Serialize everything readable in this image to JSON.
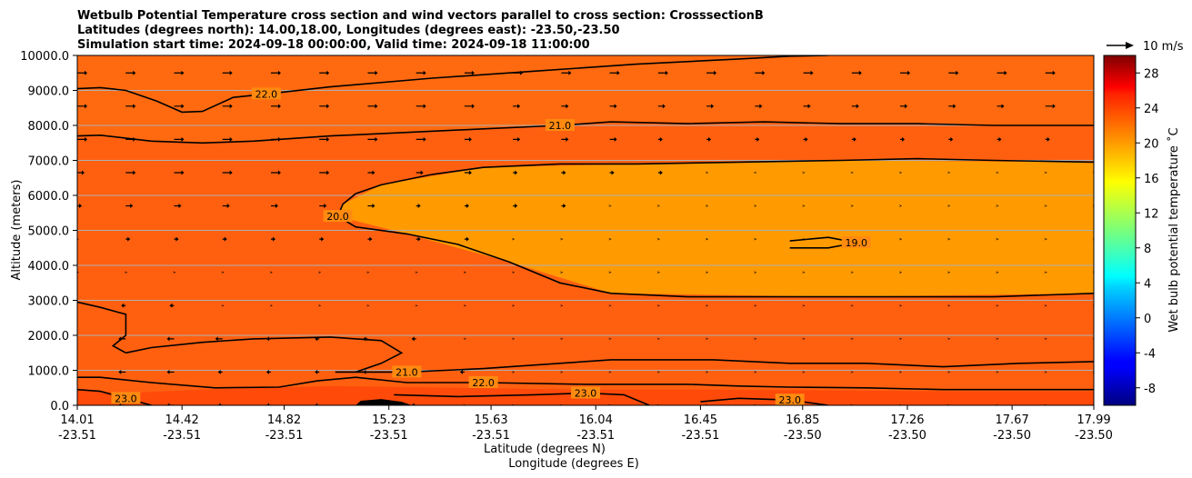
{
  "chart_data": {
    "type": "contourf",
    "title_lines": [
      "Wetbulb Potential Temperature cross section and wind vectors parallel to cross section: CrosssectionB",
      "Latitudes (degrees north): 14.00,18.00, Longitudes (degrees east): -23.50,-23.50",
      "Simulation start time: 2024-09-18 00:00:00, Valid time: 2024-09-18 11:00:00"
    ],
    "ylabel": "Altitude (meters)",
    "xlabel_line1": "Latitude (degrees N)",
    "xlabel_line2": "Longitude (degrees E)",
    "xlim": [
      14.01,
      17.99
    ],
    "ylim": [
      0,
      10000
    ],
    "x_ticks": [
      {
        "lat": "14.01",
        "lon": "-23.51",
        "value": 14.01
      },
      {
        "lat": "14.42",
        "lon": "-23.51",
        "value": 14.42
      },
      {
        "lat": "14.82",
        "lon": "-23.51",
        "value": 14.82
      },
      {
        "lat": "15.23",
        "lon": "-23.51",
        "value": 15.23
      },
      {
        "lat": "15.63",
        "lon": "-23.51",
        "value": 15.63
      },
      {
        "lat": "16.04",
        "lon": "-23.51",
        "value": 16.04
      },
      {
        "lat": "16.45",
        "lon": "-23.51",
        "value": 16.45
      },
      {
        "lat": "16.85",
        "lon": "-23.50",
        "value": 16.85
      },
      {
        "lat": "17.26",
        "lon": "-23.50",
        "value": 17.26
      },
      {
        "lat": "17.67",
        "lon": "-23.50",
        "value": 17.67
      },
      {
        "lat": "17.99",
        "lon": "-23.50",
        "value": 17.99
      }
    ],
    "y_ticks": [
      {
        "label": "0.0",
        "value": 0
      },
      {
        "label": "1000.0",
        "value": 1000
      },
      {
        "label": "2000.0",
        "value": 2000
      },
      {
        "label": "3000.0",
        "value": 3000
      },
      {
        "label": "4000.0",
        "value": 4000
      },
      {
        "label": "5000.0",
        "value": 5000
      },
      {
        "label": "6000.0",
        "value": 6000
      },
      {
        "label": "7000.0",
        "value": 7000
      },
      {
        "label": "8000.0",
        "value": 8000
      },
      {
        "label": "9000.0",
        "value": 9000
      },
      {
        "label": "10000.0",
        "value": 10000
      }
    ],
    "grid": "horizontal",
    "colorbar": {
      "label": "Wet bulb potential temperature ˚C",
      "colormap": "jet",
      "vmin": -10,
      "vmax": 30,
      "ticks": [
        "-8",
        "-4",
        "0",
        "4",
        "8",
        "12",
        "16",
        "20",
        "24",
        "28"
      ],
      "tick_values": [
        -8,
        -4,
        0,
        4,
        8,
        12,
        16,
        20,
        24,
        28
      ]
    },
    "quiver_key": {
      "label": "10 m/s",
      "value": 10
    },
    "contours": [
      {
        "level": 22.0,
        "label": "22.0",
        "points": [
          [
            14.01,
            9050
          ],
          [
            14.1,
            9080
          ],
          [
            14.2,
            9000
          ],
          [
            14.32,
            8700
          ],
          [
            14.42,
            8380
          ],
          [
            14.5,
            8400
          ],
          [
            14.62,
            8800
          ],
          [
            14.75,
            8900
          ],
          [
            15.0,
            9100
          ],
          [
            15.4,
            9350
          ],
          [
            15.8,
            9550
          ],
          [
            16.2,
            9750
          ],
          [
            16.6,
            9900
          ],
          [
            16.8,
            9980
          ],
          [
            16.95,
            10000
          ]
        ]
      },
      {
        "level": 21.0,
        "label": "21.0",
        "points": [
          [
            14.01,
            7700
          ],
          [
            14.1,
            7720
          ],
          [
            14.3,
            7550
          ],
          [
            14.5,
            7500
          ],
          [
            14.7,
            7550
          ],
          [
            15.0,
            7700
          ],
          [
            15.3,
            7800
          ],
          [
            15.6,
            7900
          ],
          [
            15.9,
            8000
          ],
          [
            16.1,
            8100
          ],
          [
            16.4,
            8050
          ],
          [
            16.7,
            8100
          ],
          [
            17.0,
            8050
          ],
          [
            17.3,
            8050
          ],
          [
            17.6,
            8000
          ],
          [
            17.99,
            8000
          ]
        ]
      },
      {
        "level": 20.0,
        "label": "20.0",
        "points": [
          [
            17.99,
            6950
          ],
          [
            17.6,
            7000
          ],
          [
            17.3,
            7050
          ],
          [
            17.0,
            7000
          ],
          [
            16.6,
            6950
          ],
          [
            16.2,
            6900
          ],
          [
            15.9,
            6900
          ],
          [
            15.6,
            6800
          ],
          [
            15.4,
            6600
          ],
          [
            15.2,
            6300
          ],
          [
            15.1,
            6050
          ],
          [
            15.05,
            5750
          ],
          [
            15.03,
            5400
          ],
          [
            15.1,
            5100
          ],
          [
            15.3,
            4900
          ],
          [
            15.5,
            4600
          ],
          [
            15.7,
            4100
          ],
          [
            15.9,
            3500
          ],
          [
            16.1,
            3200
          ],
          [
            16.4,
            3100
          ],
          [
            16.8,
            3100
          ],
          [
            17.2,
            3100
          ],
          [
            17.6,
            3100
          ],
          [
            17.99,
            3200
          ]
        ]
      },
      {
        "level": 19.0,
        "label": "19.0",
        "points": [
          [
            16.8,
            4700
          ],
          [
            16.95,
            4800
          ],
          [
            17.06,
            4650
          ],
          [
            16.95,
            4500
          ],
          [
            16.8,
            4500
          ]
        ]
      },
      {
        "level": 21.0,
        "label": "21.0",
        "points": [
          [
            14.2,
            1500
          ],
          [
            14.3,
            1650
          ],
          [
            14.5,
            1800
          ],
          [
            14.7,
            1900
          ],
          [
            15.0,
            1950
          ],
          [
            15.2,
            1850
          ],
          [
            15.28,
            1500
          ],
          [
            15.2,
            1200
          ],
          [
            15.1,
            950
          ],
          [
            15.02,
            950
          ],
          [
            15.3,
            950
          ],
          [
            15.6,
            1050
          ],
          [
            15.9,
            1200
          ],
          [
            16.1,
            1300
          ],
          [
            16.5,
            1300
          ],
          [
            16.8,
            1200
          ],
          [
            17.1,
            1200
          ],
          [
            17.4,
            1100
          ],
          [
            17.7,
            1200
          ],
          [
            17.99,
            1250
          ]
        ]
      },
      {
        "level": 21.0,
        "label": "",
        "points": [
          [
            14.01,
            2950
          ],
          [
            14.1,
            2800
          ],
          [
            14.2,
            2600
          ],
          [
            14.2,
            2000
          ],
          [
            14.15,
            1700
          ],
          [
            14.2,
            1500
          ]
        ]
      },
      {
        "level": 22.0,
        "label": "22.0",
        "points": [
          [
            14.01,
            800
          ],
          [
            14.1,
            800
          ],
          [
            14.3,
            650
          ],
          [
            14.55,
            500
          ],
          [
            14.8,
            520
          ],
          [
            14.95,
            700
          ],
          [
            15.1,
            800
          ],
          [
            15.3,
            650
          ],
          [
            15.6,
            650
          ],
          [
            16.0,
            600
          ],
          [
            16.4,
            600
          ],
          [
            16.6,
            550
          ],
          [
            16.8,
            520
          ],
          [
            17.1,
            500
          ],
          [
            17.4,
            450
          ],
          [
            17.7,
            450
          ],
          [
            17.99,
            450
          ]
        ]
      },
      {
        "level": 23.0,
        "label": "23.0",
        "points": [
          [
            14.01,
            450
          ],
          [
            14.1,
            400
          ],
          [
            14.2,
            200
          ],
          [
            14.3,
            0
          ]
        ]
      },
      {
        "level": 23.0,
        "label": "23.0",
        "points": [
          [
            15.25,
            300
          ],
          [
            15.5,
            250
          ],
          [
            15.8,
            300
          ],
          [
            16.0,
            350
          ],
          [
            16.15,
            300
          ],
          [
            16.25,
            0
          ]
        ]
      },
      {
        "level": 23.0,
        "label": "23.0",
        "points": [
          [
            16.45,
            100
          ],
          [
            16.6,
            200
          ],
          [
            16.8,
            150
          ],
          [
            16.9,
            50
          ],
          [
            16.95,
            0
          ]
        ]
      }
    ],
    "series": [
      {
        "kind": "filled",
        "level_min": 22,
        "level_max": 30,
        "region": "near-surface",
        "points": [
          [
            14.01,
            0
          ],
          [
            14.01,
            450
          ],
          [
            14.2,
            350
          ],
          [
            14.5,
            450
          ],
          [
            15.0,
            550
          ],
          [
            15.5,
            500
          ],
          [
            16.0,
            450
          ],
          [
            16.5,
            450
          ],
          [
            17.0,
            420
          ],
          [
            17.5,
            400
          ],
          [
            17.99,
            400
          ],
          [
            17.99,
            0
          ]
        ]
      },
      {
        "kind": "filled",
        "level_min": 20,
        "level_max": 30,
        "region": "upper",
        "points": [
          [
            14.01,
            7700
          ],
          [
            14.5,
            7500
          ],
          [
            15.0,
            7700
          ],
          [
            15.6,
            7900
          ],
          [
            16.1,
            8100
          ],
          [
            16.7,
            8100
          ],
          [
            17.3,
            8050
          ],
          [
            17.99,
            8000
          ],
          [
            17.99,
            10000
          ],
          [
            14.01,
            10000
          ]
        ]
      },
      {
        "kind": "filled",
        "level_min": 19,
        "level_max": 20,
        "region": "mid",
        "points": [
          [
            15.03,
            5400
          ],
          [
            15.3,
            4900
          ],
          [
            15.7,
            4100
          ],
          [
            16.1,
            3200
          ],
          [
            17.0,
            3100
          ],
          [
            17.99,
            3200
          ],
          [
            17.99,
            6950
          ],
          [
            17.0,
            7000
          ],
          [
            16.2,
            6900
          ],
          [
            15.6,
            6800
          ],
          [
            15.2,
            6300
          ],
          [
            15.05,
            5750
          ]
        ]
      },
      {
        "kind": "terrain",
        "points": [
          [
            15.1,
            0
          ],
          [
            15.12,
            130
          ],
          [
            15.2,
            180
          ],
          [
            15.28,
            100
          ],
          [
            15.32,
            0
          ]
        ]
      }
    ],
    "wind_vectors_u_mps": [
      [
        -2,
        -2,
        -2,
        -1,
        -1,
        -1,
        -1,
        -1,
        0,
        0,
        0,
        0,
        0,
        0,
        0,
        0,
        0,
        0,
        0,
        0,
        0,
        0
      ],
      [
        -2,
        -2,
        -2,
        -1,
        -1,
        -1,
        -1,
        -1,
        -1,
        0,
        0,
        0,
        0,
        0,
        0,
        0,
        0,
        0,
        0,
        0,
        0,
        0
      ],
      [
        -3,
        -2,
        -2,
        -2,
        -1,
        -1,
        -1,
        -1,
        0,
        0,
        0,
        0,
        0,
        0,
        0,
        0,
        0,
        0,
        0,
        0,
        0,
        0
      ],
      [
        -1,
        -1,
        -1,
        0,
        0,
        0,
        0,
        0,
        0,
        0,
        0,
        0,
        0,
        0,
        0,
        0,
        0,
        0,
        0,
        0,
        0,
        0
      ],
      [
        0,
        0,
        0,
        0,
        0,
        0,
        0,
        0,
        0,
        0,
        0,
        0,
        0,
        0,
        0,
        0,
        0,
        0,
        0,
        0,
        0,
        0
      ],
      [
        0,
        1,
        1,
        1,
        1,
        1,
        1,
        1,
        1,
        0,
        0,
        0,
        0,
        0,
        0,
        0,
        0,
        0,
        0,
        0,
        0,
        0
      ],
      [
        1,
        2,
        2,
        2,
        2,
        2,
        2,
        1,
        1,
        1,
        1,
        0,
        0,
        0,
        0,
        0,
        0,
        0,
        0,
        0,
        0,
        0
      ],
      [
        2,
        3,
        3,
        3,
        3,
        3,
        2,
        2,
        2,
        1,
        1,
        1,
        1,
        0,
        0,
        0,
        0,
        0,
        0,
        0,
        0,
        0
      ],
      [
        3,
        3,
        3,
        3,
        3,
        3,
        3,
        3,
        2,
        2,
        2,
        2,
        1,
        1,
        1,
        1,
        1,
        1,
        1,
        1,
        1,
        1
      ],
      [
        3,
        3,
        3,
        3,
        3,
        3,
        3,
        3,
        3,
        2,
        2,
        2,
        2,
        2,
        2,
        2,
        2,
        2,
        2,
        2,
        3,
        3
      ],
      [
        3,
        3,
        3,
        3,
        3,
        3,
        3,
        3,
        3,
        3,
        3,
        3,
        3,
        3,
        3,
        3,
        3,
        3,
        3,
        3,
        3,
        4
      ]
    ]
  }
}
